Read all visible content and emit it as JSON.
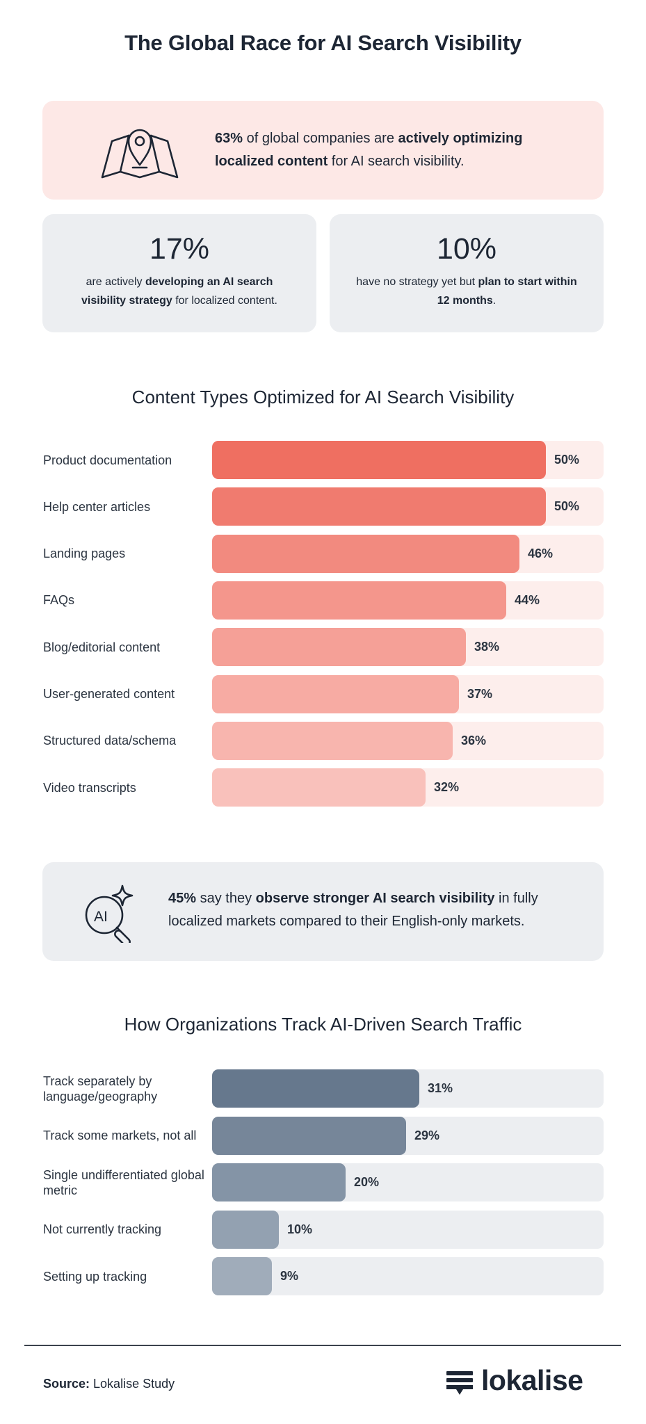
{
  "title": "The Global Race for AI Search Visibility",
  "hero": {
    "icon": "map-pin-icon",
    "pct": "63%",
    "t1": " of global companies are ",
    "b1": "actively optimizing localized content",
    "t2": " for AI search visibility."
  },
  "stats": [
    {
      "value": "17%",
      "t1": "are actively ",
      "b1": "developing an AI search visibility strategy",
      "t2": " for localized content.",
      "b2": "",
      "t3": ""
    },
    {
      "value": "10%",
      "t1": "have no strategy yet but ",
      "b1": "plan to start within 12 months",
      "t2": ".",
      "b2": "",
      "t3": ""
    }
  ],
  "insight": {
    "icon": "ai-magnifier-icon",
    "pct": "45%",
    "t1": "  say they ",
    "b1": "observe stronger AI search visibility",
    "t2": " in fully localized markets compared to their English-only markets."
  },
  "chart_data": [
    {
      "type": "bar",
      "orientation": "horizontal",
      "title": "Content Types Optimized for AI Search Visibility",
      "categories": [
        "Product documentation",
        "Help center articles",
        "Landing pages",
        "FAQs",
        "Blog/editorial content",
        "User-generated content",
        "Structured data/schema",
        "Video transcripts"
      ],
      "values": [
        50,
        50,
        46,
        44,
        38,
        37,
        36,
        32
      ],
      "labels": [
        "50%",
        "50%",
        "46%",
        "44%",
        "38%",
        "37%",
        "36%",
        "32%"
      ],
      "xlim": [
        0,
        58.6
      ],
      "unit": "%",
      "colors": [
        "#ef6f61",
        "#f07b6f",
        "#f28a7f",
        "#f4968c",
        "#f5a097",
        "#f7aba3",
        "#f8b5ae",
        "#f9c1bb"
      ],
      "track_color": "#fdeeec"
    },
    {
      "type": "bar",
      "orientation": "horizontal",
      "title": "How Organizations Track AI-Driven Search Traffic",
      "categories": [
        "Track separately by language/geography",
        "Track some markets, not all",
        "Single undifferentiated global metric",
        "Not currently tracking",
        "Setting up tracking"
      ],
      "values": [
        31,
        29,
        20,
        10,
        9
      ],
      "labels": [
        "31%",
        "29%",
        "20%",
        "10%",
        "9%"
      ],
      "xlim": [
        0,
        58.6
      ],
      "unit": "%",
      "colors": [
        "#66788d",
        "#768699",
        "#8494a6",
        "#93a1b1",
        "#a0acba"
      ],
      "track_color": "#eceef1"
    }
  ],
  "footer": {
    "source_label": "Source:",
    "source_value": " Lokalise Study",
    "logo_text": "lokalise"
  }
}
